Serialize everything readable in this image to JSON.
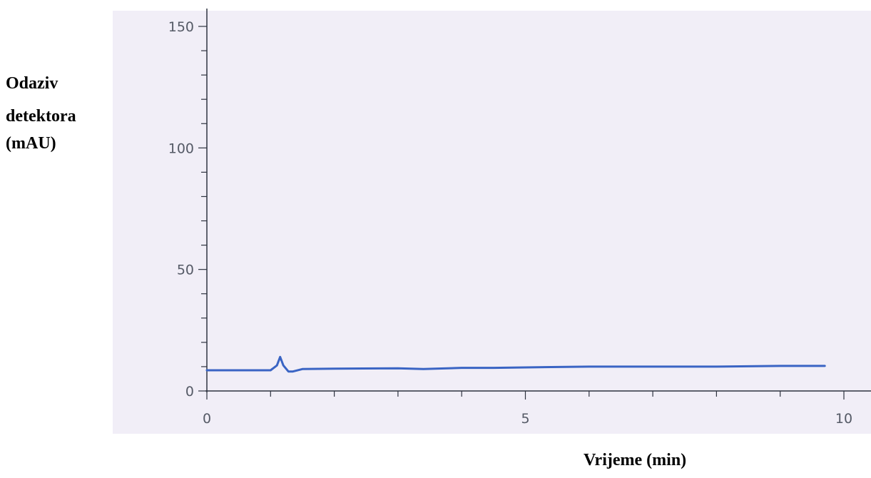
{
  "chart_data": {
    "type": "line",
    "ylabel_lines": [
      "Odaziv",
      "detektora",
      "(mAU)"
    ],
    "xlabel": "Vrijeme (min)",
    "xlim": [
      0,
      10
    ],
    "ylim": [
      0,
      150
    ],
    "x_ticks": [
      0,
      5,
      10
    ],
    "x_tick_labels": [
      "0",
      "5",
      "10"
    ],
    "x_minor_step": 1,
    "y_ticks": [
      0,
      50,
      100,
      150
    ],
    "y_tick_labels": [
      "0",
      "50",
      "100",
      "150"
    ],
    "y_minor_step": 10,
    "grid": false,
    "series": [
      {
        "color": "#3a64c4",
        "x": [
          0,
          1.0,
          1.1,
          1.15,
          1.2,
          1.28,
          1.35,
          1.5,
          2.0,
          3.0,
          3.4,
          4.0,
          4.5,
          5.0,
          6.0,
          7.0,
          8.0,
          9.0,
          9.7
        ],
        "y": [
          8.5,
          8.5,
          10.5,
          14.0,
          10.5,
          8.0,
          8.0,
          9.0,
          9.2,
          9.3,
          9.0,
          9.5,
          9.5,
          9.7,
          10.0,
          10.0,
          10.0,
          10.3,
          10.3
        ]
      }
    ]
  }
}
